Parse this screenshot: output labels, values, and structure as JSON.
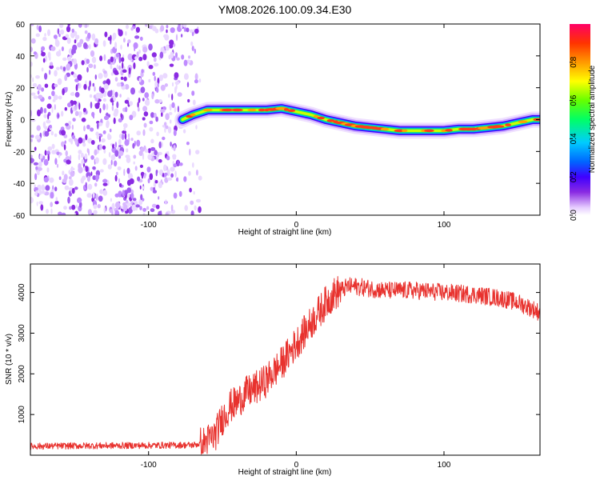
{
  "title": "YM08.2026.100.09.34.E30",
  "colors": {
    "snr_line": "#e8322e",
    "axis": "#000000"
  },
  "chart_data": [
    {
      "type": "heatmap",
      "name": "spectrogram",
      "xlabel": "Height of straight line (km)",
      "ylabel": "Frequency (Hz)",
      "xlim": [
        -180,
        165
      ],
      "ylim": [
        -60,
        60
      ],
      "xticks": [
        -100,
        0,
        100
      ],
      "yticks": [
        -60,
        -40,
        -20,
        0,
        20,
        40,
        60
      ],
      "noise_region_x": [
        -180,
        -65
      ],
      "ridge": {
        "x": [
          -77,
          -70,
          -60,
          -50,
          -40,
          -30,
          -20,
          -10,
          0,
          10,
          20,
          30,
          40,
          50,
          60,
          70,
          80,
          90,
          100,
          110,
          120,
          130,
          140,
          150,
          160,
          165
        ],
        "freq": [
          0,
          3,
          6,
          6,
          6,
          6,
          6,
          7,
          5,
          3,
          0,
          -2,
          -4,
          -5,
          -6,
          -7,
          -7,
          -7,
          -7,
          -6,
          -6,
          -5,
          -4,
          -2,
          0,
          0
        ]
      }
    },
    {
      "type": "colorbar",
      "name": "amplitude-colorbar",
      "label": "Normalized spectral amplitude",
      "range": [
        0,
        1
      ],
      "ticks": [
        "0.0",
        "0.2",
        "0.4",
        "0.6",
        "0.8"
      ],
      "tick_values": [
        0.0,
        0.2,
        0.4,
        0.6,
        0.8
      ],
      "colormap": [
        "#ffffff",
        "#e6ccff",
        "#8a2be2",
        "#3f00ff",
        "#0066ff",
        "#00ccff",
        "#00ff66",
        "#66ff00",
        "#ffff00",
        "#ff9900",
        "#ff3300",
        "#ff0066"
      ]
    },
    {
      "type": "line",
      "name": "snr",
      "xlabel": "Height of straight line (km)",
      "ylabel": "SNR (10 * v/v)",
      "xlim": [
        -180,
        165
      ],
      "ylim": [
        0,
        4700
      ],
      "xticks": [
        -100,
        0,
        100
      ],
      "yticks": [
        1000,
        2000,
        3000,
        4000
      ],
      "x": [
        -180,
        -150,
        -100,
        -70,
        -62,
        -55,
        -50,
        -45,
        -40,
        -35,
        -30,
        -25,
        -20,
        -15,
        -10,
        -5,
        0,
        5,
        10,
        15,
        20,
        25,
        30,
        35,
        40,
        50,
        60,
        80,
        100,
        120,
        140,
        150,
        160,
        165
      ],
      "y": [
        220,
        230,
        240,
        250,
        300,
        500,
        900,
        1200,
        1300,
        1500,
        1600,
        1700,
        1850,
        2050,
        2250,
        2500,
        2750,
        3000,
        3250,
        3500,
        3750,
        3950,
        4050,
        4150,
        4150,
        4100,
        4050,
        4050,
        4000,
        3950,
        3850,
        3750,
        3600,
        3500
      ]
    }
  ]
}
